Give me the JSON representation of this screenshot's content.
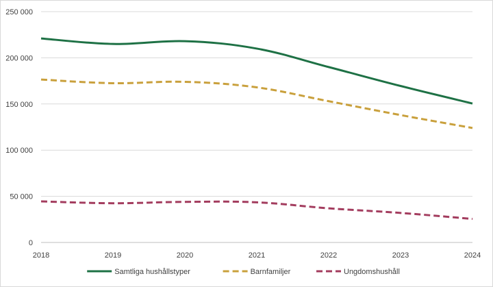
{
  "chart_data": {
    "type": "line",
    "title": "",
    "xlabel": "",
    "ylabel": "",
    "x": [
      "2018",
      "2019",
      "2020",
      "2021",
      "2022",
      "2023",
      "2024"
    ],
    "ylim": [
      0,
      250000
    ],
    "yticks": [
      {
        "value": 0,
        "label": "0"
      },
      {
        "value": 50000,
        "label": "50 000"
      },
      {
        "value": 100000,
        "label": "100 000"
      },
      {
        "value": 150000,
        "label": "150 000"
      },
      {
        "value": 200000,
        "label": "200 000"
      },
      {
        "value": 250000,
        "label": "250 000"
      }
    ],
    "grid": true,
    "legend_position": "bottom",
    "series": [
      {
        "name": "Samtliga hushållstyper",
        "color": "#1e7145",
        "dash": "solid",
        "values": [
          221000,
          215000,
          218000,
          210000,
          190000,
          169500,
          150500
        ]
      },
      {
        "name": "Barnfamiljer",
        "color": "#c9a03c",
        "dash": "dashed",
        "values": [
          176500,
          172500,
          174000,
          168000,
          153000,
          138000,
          124000
        ]
      },
      {
        "name": "Ungdomshushåll",
        "color": "#a33c5e",
        "dash": "dashed",
        "values": [
          44500,
          42500,
          44000,
          43500,
          37000,
          32000,
          25500
        ]
      }
    ]
  }
}
